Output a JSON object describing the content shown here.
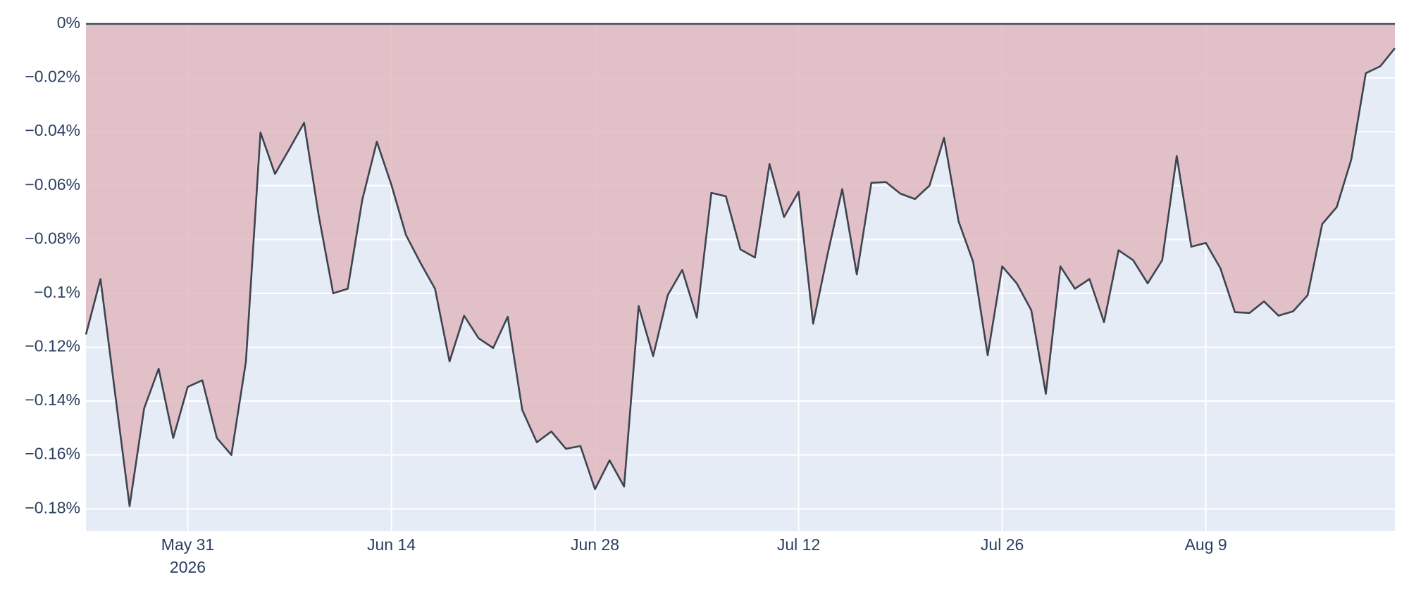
{
  "chart_data": {
    "type": "area",
    "x": [
      "2026-05-24",
      "2026-05-25",
      "2026-05-26",
      "2026-05-27",
      "2026-05-28",
      "2026-05-29",
      "2026-05-30",
      "2026-05-31",
      "2026-06-01",
      "2026-06-02",
      "2026-06-03",
      "2026-06-04",
      "2026-06-05",
      "2026-06-06",
      "2026-06-07",
      "2026-06-08",
      "2026-06-09",
      "2026-06-10",
      "2026-06-11",
      "2026-06-12",
      "2026-06-13",
      "2026-06-14",
      "2026-06-15",
      "2026-06-16",
      "2026-06-17",
      "2026-06-18",
      "2026-06-19",
      "2026-06-20",
      "2026-06-21",
      "2026-06-22",
      "2026-06-23",
      "2026-06-24",
      "2026-06-25",
      "2026-06-26",
      "2026-06-27",
      "2026-06-28",
      "2026-06-29",
      "2026-06-30",
      "2026-07-01",
      "2026-07-02",
      "2026-07-03",
      "2026-07-04",
      "2026-07-05",
      "2026-07-06",
      "2026-07-07",
      "2026-07-08",
      "2026-07-09",
      "2026-07-10",
      "2026-07-11",
      "2026-07-12",
      "2026-07-13",
      "2026-07-14",
      "2026-07-15",
      "2026-07-16",
      "2026-07-17",
      "2026-07-18",
      "2026-07-19",
      "2026-07-20",
      "2026-07-21",
      "2026-07-22",
      "2026-07-23",
      "2026-07-24",
      "2026-07-25",
      "2026-07-26",
      "2026-07-27",
      "2026-07-28",
      "2026-07-29",
      "2026-07-30",
      "2026-07-31",
      "2026-08-01",
      "2026-08-02",
      "2026-08-03",
      "2026-08-04",
      "2026-08-05",
      "2026-08-06",
      "2026-08-07",
      "2026-08-08",
      "2026-08-09",
      "2026-08-10",
      "2026-08-11",
      "2026-08-12",
      "2026-08-13",
      "2026-08-14",
      "2026-08-15",
      "2026-08-16",
      "2026-08-17",
      "2026-08-18",
      "2026-08-19",
      "2026-08-20",
      "2026-08-21",
      "2026-08-22"
    ],
    "series": [
      {
        "line_color": "#3d4450",
        "fill_color": "#e2b8be",
        "values": [
          -0.1153,
          -0.0947,
          -0.137,
          -0.179,
          -0.1427,
          -0.128,
          -0.1537,
          -0.1347,
          -0.1323,
          -0.1537,
          -0.16,
          -0.1253,
          -0.0403,
          -0.0557,
          -0.0463,
          -0.0367,
          -0.071,
          -0.1,
          -0.0983,
          -0.0653,
          -0.0437,
          -0.0597,
          -0.0783,
          -0.0887,
          -0.0983,
          -0.1253,
          -0.1083,
          -0.1167,
          -0.1203,
          -0.1087,
          -0.1433,
          -0.1553,
          -0.1513,
          -0.1577,
          -0.1567,
          -0.1727,
          -0.162,
          -0.1717,
          -0.1047,
          -0.1233,
          -0.1007,
          -0.0913,
          -0.109,
          -0.0627,
          -0.064,
          -0.0837,
          -0.0867,
          -0.052,
          -0.0717,
          -0.0623,
          -0.1113,
          -0.0853,
          -0.0613,
          -0.093,
          -0.059,
          -0.0587,
          -0.063,
          -0.065,
          -0.06,
          -0.0423,
          -0.0733,
          -0.0883,
          -0.123,
          -0.09,
          -0.0963,
          -0.1063,
          -0.1373,
          -0.09,
          -0.0983,
          -0.0947,
          -0.1107,
          -0.084,
          -0.0877,
          -0.0963,
          -0.0877,
          -0.049,
          -0.0827,
          -0.0813,
          -0.0907,
          -0.107,
          -0.1073,
          -0.103,
          -0.1083,
          -0.1067,
          -0.1007,
          -0.0743,
          -0.068,
          -0.0503,
          -0.0183,
          -0.0157,
          -0.009
        ]
      }
    ],
    "xlim": [
      "2026-05-24",
      "2026-08-22"
    ],
    "xticks": [
      {
        "value": "2026-05-31",
        "label": "May 31",
        "year": "2026"
      },
      {
        "value": "2026-06-14",
        "label": "Jun 14"
      },
      {
        "value": "2026-06-28",
        "label": "Jun 28"
      },
      {
        "value": "2026-07-12",
        "label": "Jul 12"
      },
      {
        "value": "2026-07-26",
        "label": "Jul 26"
      },
      {
        "value": "2026-08-09",
        "label": "Aug 9"
      }
    ],
    "ylim": [
      -0.1883,
      0
    ],
    "yticks": [
      {
        "value": 0,
        "label": "0%"
      },
      {
        "value": -0.02,
        "label": "−0.02%"
      },
      {
        "value": -0.04,
        "label": "−0.04%"
      },
      {
        "value": -0.06,
        "label": "−0.06%"
      },
      {
        "value": -0.08,
        "label": "−0.08%"
      },
      {
        "value": -0.1,
        "label": "−0.1%"
      },
      {
        "value": -0.12,
        "label": "−0.12%"
      },
      {
        "value": -0.14,
        "label": "−0.14%"
      },
      {
        "value": -0.16,
        "label": "−0.16%"
      },
      {
        "value": -0.18,
        "label": "−0.18%"
      }
    ],
    "grid": true,
    "plot_bgcolor": "#e5ecf6",
    "zero_line_color": "#444f5e"
  }
}
